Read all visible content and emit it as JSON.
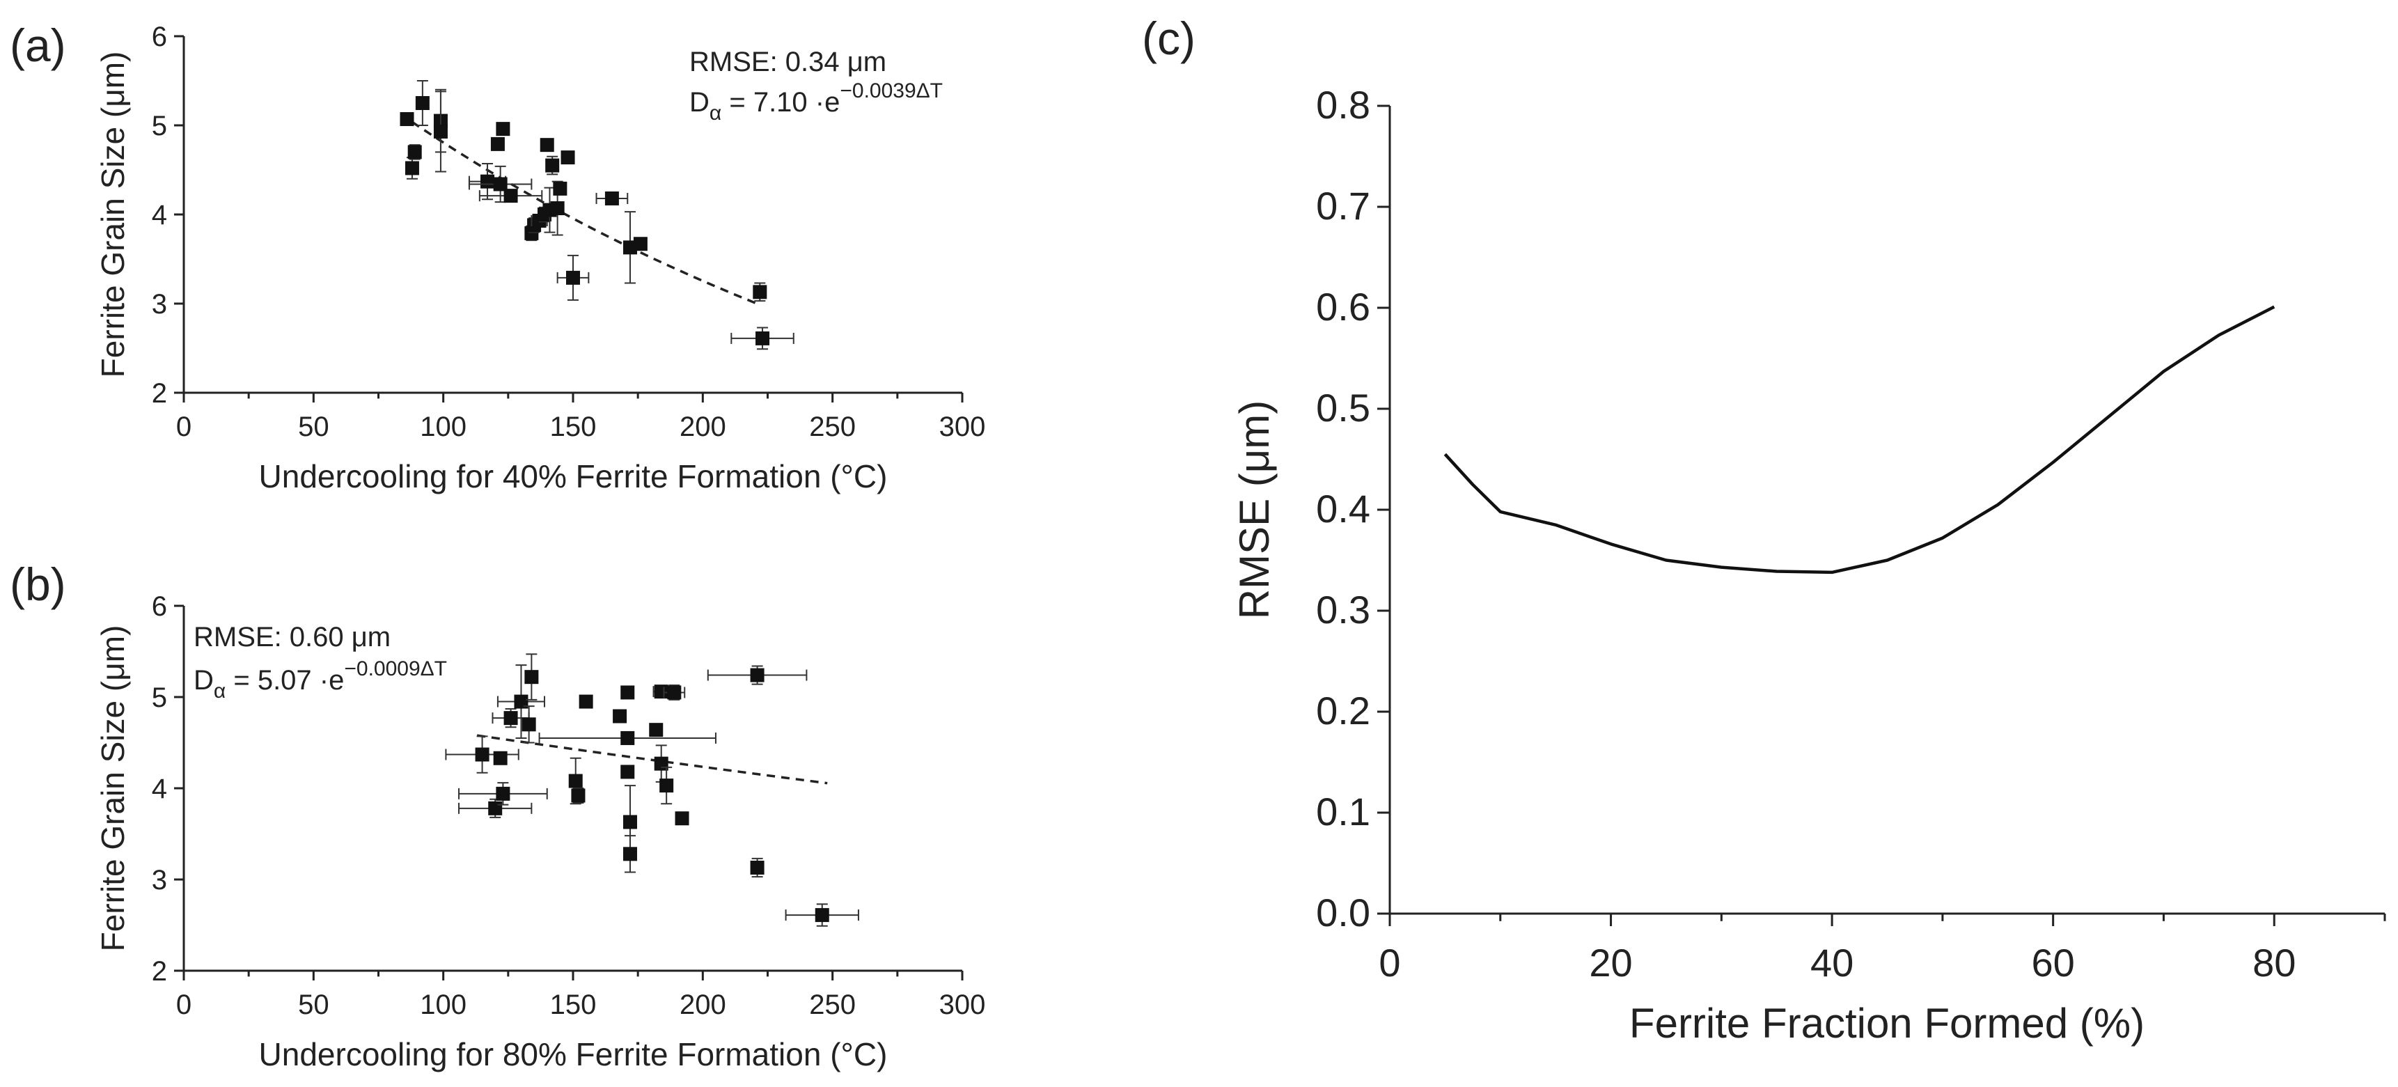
{
  "figure": {
    "panels": [
      "(a)",
      "(b)",
      "(c)"
    ]
  },
  "chart_data": [
    {
      "id": "a",
      "type": "scatter",
      "panel_label": "(a)",
      "xlabel": "Undercooling for 40% Ferrite Formation (°C)",
      "ylabel": "Ferrite Grain Size (μm)",
      "xlim": [
        0,
        300
      ],
      "ylim": [
        2,
        6
      ],
      "xticks": [
        "0",
        "50",
        "100",
        "150",
        "200",
        "250",
        "300"
      ],
      "yticks": [
        "2",
        "3",
        "4",
        "5",
        "6"
      ],
      "annotation": {
        "rmse": "RMSE: 0.34 μm",
        "eq_prefix": "D",
        "eq_sub": "α",
        "eq_main": " = 7.10 ·e",
        "eq_exp": "−0.0039ΔT"
      },
      "fit": {
        "a": 7.1,
        "b": 0.0039,
        "x_range": [
          88,
          222
        ]
      },
      "points": [
        {
          "x": 86,
          "y": 5.07,
          "xerr": 0,
          "yerr": 0.05
        },
        {
          "x": 88,
          "y": 4.52,
          "xerr": 0,
          "yerr": 0.12
        },
        {
          "x": 89,
          "y": 4.7,
          "xerr": 0,
          "yerr": 0.08
        },
        {
          "x": 92,
          "y": 5.25,
          "xerr": 0,
          "yerr": 0.25
        },
        {
          "x": 99,
          "y": 5.05,
          "xerr": 0,
          "yerr": 0.35
        },
        {
          "x": 99,
          "y": 4.93,
          "xerr": 0,
          "yerr": 0.45
        },
        {
          "x": 117,
          "y": 4.37,
          "xerr": 7,
          "yerr": 0.2
        },
        {
          "x": 121,
          "y": 4.79,
          "xerr": 0,
          "yerr": 0.05
        },
        {
          "x": 122,
          "y": 4.34,
          "xerr": 12,
          "yerr": 0.2
        },
        {
          "x": 123,
          "y": 4.96,
          "xerr": 0,
          "yerr": 0.05
        },
        {
          "x": 126,
          "y": 4.21,
          "xerr": 12,
          "yerr": 0.05
        },
        {
          "x": 134,
          "y": 3.79,
          "xerr": 0,
          "yerr": 0.08
        },
        {
          "x": 135,
          "y": 3.88,
          "xerr": 0,
          "yerr": 0.08
        },
        {
          "x": 137,
          "y": 3.93,
          "xerr": 3,
          "yerr": 0.05
        },
        {
          "x": 139,
          "y": 4.0,
          "xerr": 0,
          "yerr": 0.08
        },
        {
          "x": 140,
          "y": 4.78,
          "xerr": 0,
          "yerr": 0.05
        },
        {
          "x": 141,
          "y": 4.05,
          "xerr": 0,
          "yerr": 0.25
        },
        {
          "x": 142,
          "y": 4.55,
          "xerr": 0,
          "yerr": 0.1
        },
        {
          "x": 144,
          "y": 4.07,
          "xerr": 0,
          "yerr": 0.3
        },
        {
          "x": 145,
          "y": 4.29,
          "xerr": 0,
          "yerr": 0.05
        },
        {
          "x": 148,
          "y": 4.64,
          "xerr": 0,
          "yerr": 0.05
        },
        {
          "x": 150,
          "y": 3.29,
          "xerr": 6,
          "yerr": 0.25
        },
        {
          "x": 165,
          "y": 4.18,
          "xerr": 6,
          "yerr": 0.05
        },
        {
          "x": 172,
          "y": 3.63,
          "xerr": 0,
          "yerr": 0.4
        },
        {
          "x": 176,
          "y": 3.67,
          "xerr": 0,
          "yerr": 0.05
        },
        {
          "x": 222,
          "y": 3.13,
          "xerr": 0,
          "yerr": 0.1
        },
        {
          "x": 223,
          "y": 2.61,
          "xerr": 12,
          "yerr": 0.12
        }
      ]
    },
    {
      "id": "b",
      "type": "scatter",
      "panel_label": "(b)",
      "xlabel": "Undercooling for 80% Ferrite Formation (°C)",
      "ylabel": "Ferrite Grain Size (μm)",
      "xlim": [
        0,
        300
      ],
      "ylim": [
        2,
        6
      ],
      "xticks": [
        "0",
        "50",
        "100",
        "150",
        "200",
        "250",
        "300"
      ],
      "yticks": [
        "2",
        "3",
        "4",
        "5",
        "6"
      ],
      "annotation": {
        "rmse": "RMSE: 0.60 μm",
        "eq_prefix": "D",
        "eq_sub": "α",
        "eq_main": " = 5.07 ·e",
        "eq_exp": "−0.0009ΔT"
      },
      "fit": {
        "a": 5.07,
        "b": 0.0009,
        "x_range": [
          113,
          248
        ]
      },
      "points": [
        {
          "x": 115,
          "y": 4.37,
          "xerr": 14,
          "yerr": 0.2
        },
        {
          "x": 120,
          "y": 3.78,
          "xerr": 14,
          "yerr": 0.1
        },
        {
          "x": 122,
          "y": 4.33,
          "xerr": 0,
          "yerr": 0.05
        },
        {
          "x": 123,
          "y": 3.94,
          "xerr": 17,
          "yerr": 0.12
        },
        {
          "x": 126,
          "y": 4.77,
          "xerr": 7,
          "yerr": 0.1
        },
        {
          "x": 130,
          "y": 4.95,
          "xerr": 9,
          "yerr": 0.4
        },
        {
          "x": 133,
          "y": 4.7,
          "xerr": 0,
          "yerr": 0.2
        },
        {
          "x": 134,
          "y": 5.22,
          "xerr": 0,
          "yerr": 0.25
        },
        {
          "x": 151,
          "y": 4.08,
          "xerr": 0,
          "yerr": 0.25
        },
        {
          "x": 152,
          "y": 3.92,
          "xerr": 0,
          "yerr": 0.08
        },
        {
          "x": 155,
          "y": 4.95,
          "xerr": 0,
          "yerr": 0.05
        },
        {
          "x": 168,
          "y": 4.79,
          "xerr": 0,
          "yerr": 0.05
        },
        {
          "x": 171,
          "y": 5.05,
          "xerr": 0,
          "yerr": 0.05
        },
        {
          "x": 171,
          "y": 4.55,
          "xerr": 34,
          "yerr": 0.05
        },
        {
          "x": 171,
          "y": 4.18,
          "xerr": 0,
          "yerr": 0.05
        },
        {
          "x": 172,
          "y": 3.63,
          "xerr": 0,
          "yerr": 0.4
        },
        {
          "x": 172,
          "y": 3.28,
          "xerr": 0,
          "yerr": 0.2
        },
        {
          "x": 182,
          "y": 4.64,
          "xerr": 0,
          "yerr": 0.05
        },
        {
          "x": 184,
          "y": 5.06,
          "xerr": 3,
          "yerr": 0.05
        },
        {
          "x": 184,
          "y": 4.27,
          "xerr": 0,
          "yerr": 0.2
        },
        {
          "x": 186,
          "y": 4.03,
          "xerr": 0,
          "yerr": 0.2
        },
        {
          "x": 189,
          "y": 5.05,
          "xerr": 4,
          "yerr": 0.08
        },
        {
          "x": 192,
          "y": 3.67,
          "xerr": 0,
          "yerr": 0.05
        },
        {
          "x": 221,
          "y": 5.24,
          "xerr": 19,
          "yerr": 0.1
        },
        {
          "x": 221,
          "y": 3.13,
          "xerr": 0,
          "yerr": 0.1
        },
        {
          "x": 246,
          "y": 2.61,
          "xerr": 14,
          "yerr": 0.12
        }
      ]
    },
    {
      "id": "c",
      "type": "line",
      "panel_label": "(c)",
      "xlabel": "Ferrite Fraction Formed (%)",
      "ylabel": "RMSE (μm)",
      "xlim": [
        0,
        90
      ],
      "ylim": [
        0,
        0.8
      ],
      "xticks": [
        "0",
        "20",
        "40",
        "60",
        "80"
      ],
      "yticks": [
        "0.0",
        "0.1",
        "0.2",
        "0.3",
        "0.4",
        "0.5",
        "0.6",
        "0.7",
        "0.8"
      ],
      "series": [
        {
          "name": "RMSE",
          "x": [
            5,
            7.5,
            10,
            15,
            20,
            25,
            30,
            35,
            40,
            45,
            50,
            55,
            60,
            65,
            70,
            75,
            80
          ],
          "values": [
            0.455,
            0.425,
            0.398,
            0.385,
            0.366,
            0.35,
            0.343,
            0.339,
            0.338,
            0.35,
            0.372,
            0.405,
            0.447,
            0.492,
            0.537,
            0.573,
            0.601
          ]
        }
      ]
    }
  ]
}
